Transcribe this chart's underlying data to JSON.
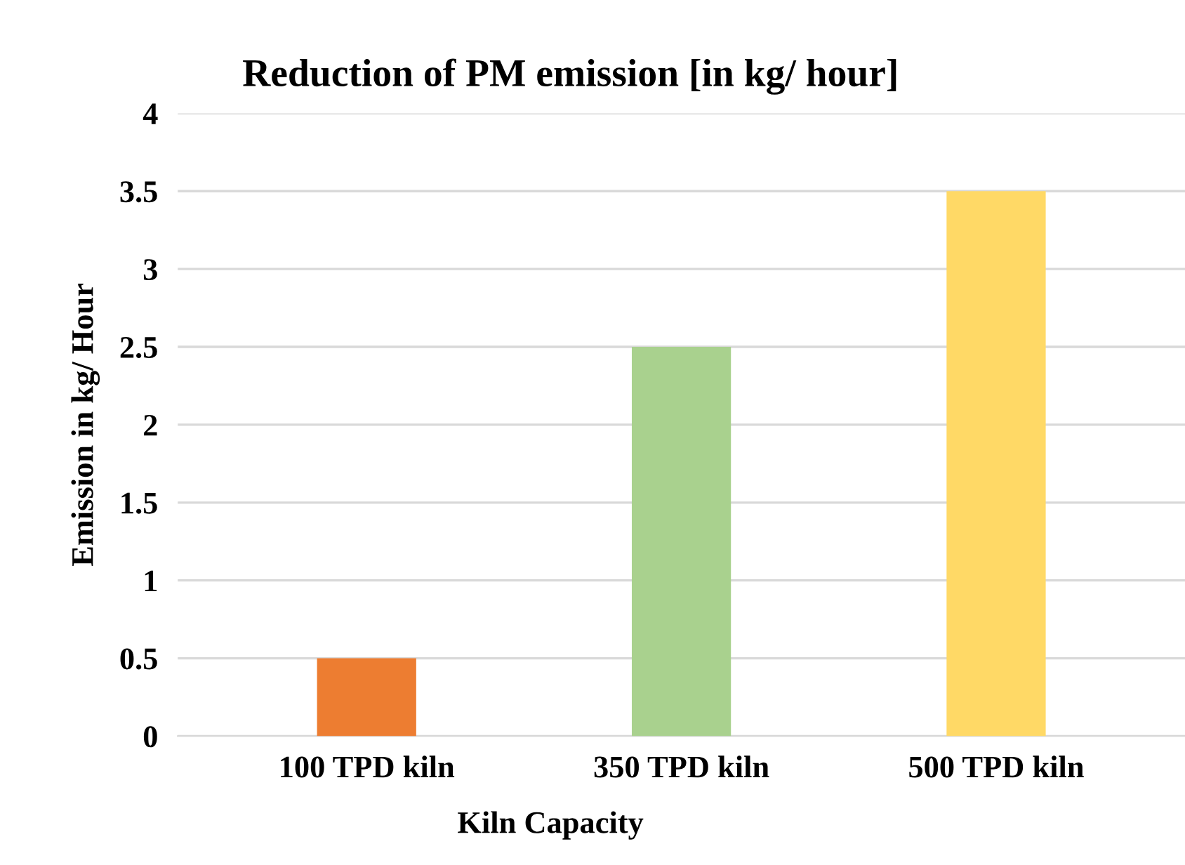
{
  "chart_data": {
    "type": "bar",
    "title": "Reduction of PM emission [in kg/ hour]",
    "xlabel": "Kiln Capacity",
    "ylabel": "Emission in kg/ Hour",
    "categories": [
      "100 TPD kiln",
      "350 TPD kiln",
      "500 TPD kiln"
    ],
    "values": [
      0.5,
      2.5,
      3.5
    ],
    "colors": [
      "#ed7d31",
      "#a9d18e",
      "#ffd966"
    ],
    "ylim": [
      0,
      4
    ],
    "yticks": [
      0,
      0.5,
      1,
      1.5,
      2,
      2.5,
      3,
      3.5,
      4
    ],
    "grid": "y"
  }
}
